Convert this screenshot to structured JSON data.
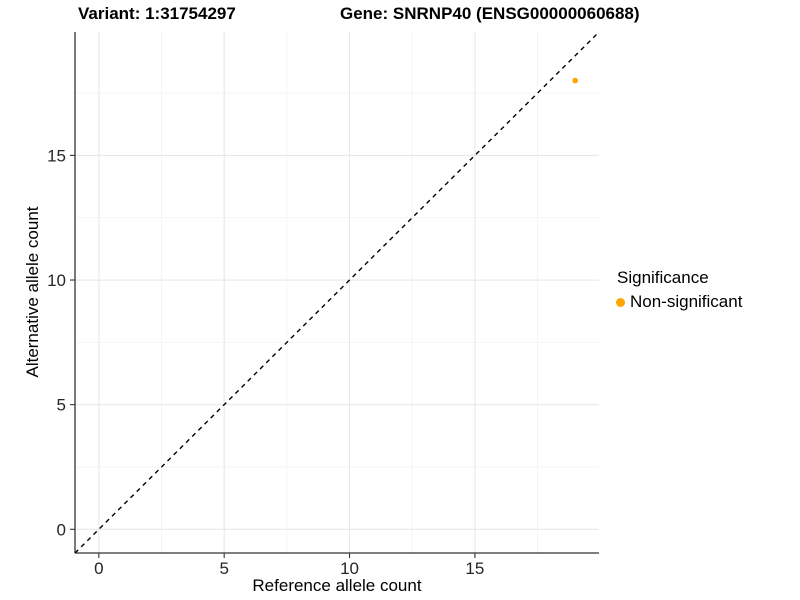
{
  "chart_data": {
    "type": "scatter",
    "variant_title": "Variant: 1:31754297",
    "gene_title": "Gene: SNRNP40 (ENSG00000060688)",
    "xlabel": "Reference allele count",
    "ylabel": "Alternative allele count",
    "xlim": [
      -0.95,
      19.95
    ],
    "ylim": [
      -0.95,
      19.95
    ],
    "x_ticks": [
      0,
      5,
      10,
      15
    ],
    "y_ticks": [
      0,
      5,
      10,
      15
    ],
    "x_minor_ticks": [
      2.5,
      7.5,
      12.5,
      17.5
    ],
    "y_minor_ticks": [
      2.5,
      7.5,
      12.5,
      17.5
    ],
    "grid": "major+minor on white background",
    "identity_line": {
      "slope": 1,
      "intercept": 0,
      "style": "dashed",
      "color": "#000000"
    },
    "series": [
      {
        "name": "Non-significant",
        "color": "#FFA500",
        "points": [
          {
            "x": 19,
            "y": 18
          }
        ],
        "point_radius": 2.8
      }
    ],
    "legend": {
      "title": "Significance",
      "position": "right",
      "items": [
        {
          "label": "Non-significant",
          "color": "#FFA500"
        }
      ]
    },
    "colors": {
      "background": "#FFFFFF",
      "grid_major": "#E8E8E8",
      "grid_minor": "#F3F3F3",
      "axis_line": "#333333",
      "tick_label": "#262626",
      "title_text": "#000000"
    }
  }
}
